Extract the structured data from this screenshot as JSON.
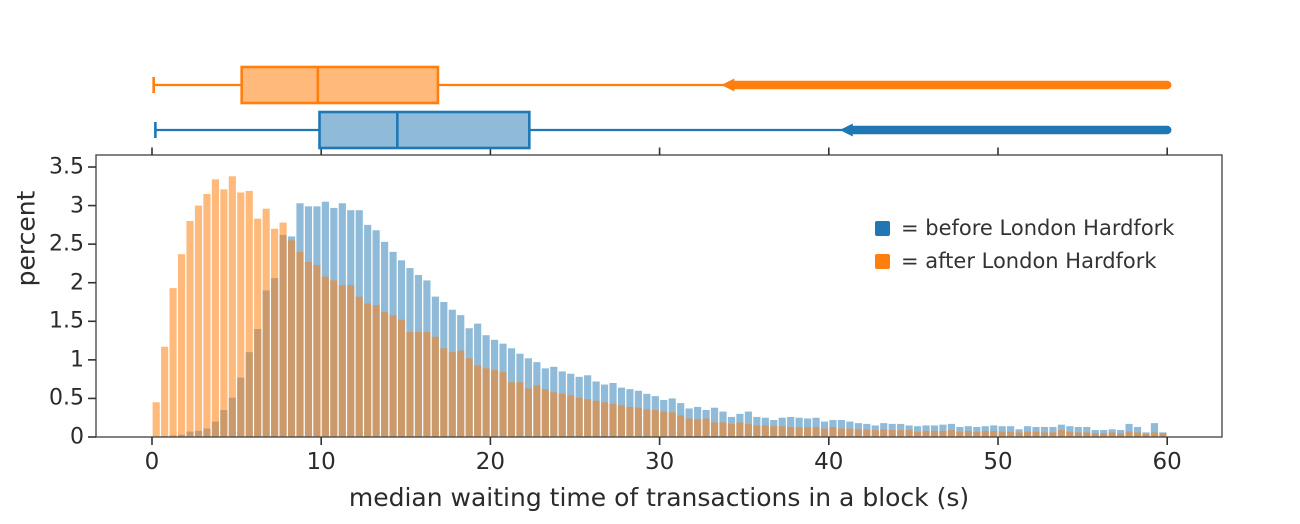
{
  "figure": {
    "x_axis_title": "median waiting time of transactions in a block (s)",
    "y_axis_title": "percent"
  },
  "legend": {
    "items": [
      {
        "label": "= before London Hardfork",
        "color": "#2077b4"
      },
      {
        "label": "= after London Hardfork",
        "color": "#ff7f0e"
      }
    ]
  },
  "chart_data": {
    "type": "bar",
    "subtype": "overlaid histograms with marginal box plots",
    "bin_width_s": 0.5,
    "x_start": 0,
    "x_ticks": [
      0,
      10,
      20,
      30,
      40,
      50,
      60
    ],
    "y_ticks": [
      "0",
      "0.5",
      "1",
      "1.5",
      "2",
      "2.5",
      "3",
      "3.5"
    ],
    "y_tick_values": [
      0,
      0.5,
      1,
      1.5,
      2,
      2.5,
      3,
      3.5
    ],
    "xlim": [
      -3.3,
      63.2
    ],
    "ylim": [
      0,
      3.66
    ],
    "grid": false,
    "legend_position": "inside top-right",
    "series": [
      {
        "name": "before London Hardfork",
        "color": "#1f77b4",
        "fill_alpha": 0.5,
        "values": [
          0.0,
          0.01,
          0.02,
          0.03,
          0.07,
          0.08,
          0.11,
          0.2,
          0.35,
          0.51,
          0.77,
          1.1,
          1.4,
          1.9,
          2.06,
          2.62,
          2.6,
          3.03,
          2.99,
          2.99,
          3.05,
          2.97,
          3.03,
          2.94,
          2.94,
          2.75,
          2.68,
          2.53,
          2.4,
          2.29,
          2.19,
          2.1,
          2.03,
          1.82,
          1.75,
          1.65,
          1.58,
          1.41,
          1.47,
          1.32,
          1.26,
          1.21,
          1.15,
          1.08,
          1.02,
          0.97,
          0.89,
          0.91,
          0.85,
          0.82,
          0.78,
          0.8,
          0.72,
          0.68,
          0.7,
          0.64,
          0.62,
          0.6,
          0.56,
          0.53,
          0.48,
          0.5,
          0.44,
          0.37,
          0.39,
          0.35,
          0.38,
          0.33,
          0.26,
          0.3,
          0.33,
          0.26,
          0.25,
          0.22,
          0.25,
          0.26,
          0.25,
          0.24,
          0.25,
          0.2,
          0.22,
          0.22,
          0.2,
          0.18,
          0.17,
          0.15,
          0.18,
          0.17,
          0.17,
          0.15,
          0.14,
          0.15,
          0.15,
          0.16,
          0.17,
          0.13,
          0.14,
          0.13,
          0.14,
          0.15,
          0.14,
          0.14,
          0.1,
          0.14,
          0.13,
          0.13,
          0.13,
          0.16,
          0.14,
          0.13,
          0.13,
          0.09,
          0.09,
          0.1,
          0.09,
          0.17,
          0.13,
          0.06,
          0.18,
          0.06
        ]
      },
      {
        "name": "after London Hardfork",
        "color": "#ff7f0e",
        "fill_alpha": 0.55,
        "values": [
          0.45,
          1.17,
          1.93,
          2.37,
          2.8,
          3.0,
          3.15,
          3.34,
          3.21,
          3.38,
          3.17,
          3.19,
          2.83,
          2.96,
          2.7,
          2.78,
          2.55,
          2.4,
          2.27,
          2.23,
          2.08,
          2.03,
          1.97,
          1.97,
          1.82,
          1.73,
          1.71,
          1.62,
          1.58,
          1.52,
          1.36,
          1.36,
          1.36,
          1.3,
          1.15,
          1.1,
          1.12,
          1.02,
          0.93,
          0.89,
          0.87,
          0.84,
          0.71,
          0.71,
          0.63,
          0.67,
          0.62,
          0.58,
          0.56,
          0.54,
          0.51,
          0.49,
          0.47,
          0.45,
          0.43,
          0.41,
          0.39,
          0.38,
          0.36,
          0.35,
          0.33,
          0.32,
          0.28,
          0.24,
          0.23,
          0.24,
          0.19,
          0.19,
          0.17,
          0.19,
          0.17,
          0.15,
          0.15,
          0.14,
          0.14,
          0.13,
          0.13,
          0.13,
          0.13,
          0.11,
          0.13,
          0.11,
          0.11,
          0.1,
          0.1,
          0.09,
          0.1,
          0.09,
          0.09,
          0.09,
          0.07,
          0.08,
          0.08,
          0.08,
          0.09,
          0.07,
          0.08,
          0.07,
          0.08,
          0.08,
          0.07,
          0.07,
          0.06,
          0.07,
          0.07,
          0.06,
          0.06,
          0.09,
          0.07,
          0.06,
          0.06,
          0.05,
          0.05,
          0.06,
          0.05,
          0.07,
          0.06,
          0.04,
          0.06,
          0.05
        ]
      }
    ],
    "boxplots": [
      {
        "name": "after London Hardfork",
        "color": "#ff7f0e",
        "fill_alpha": 0.55,
        "min": 0.1,
        "q1": 5.3,
        "median": 9.8,
        "q3": 16.9,
        "upper_whisker": 34.3,
        "outliers_from": 34.3,
        "outliers_to": 60
      },
      {
        "name": "before London Hardfork",
        "color": "#1f77b4",
        "fill_alpha": 0.5,
        "min": 0.2,
        "q1": 9.9,
        "median": 14.5,
        "q3": 22.3,
        "upper_whisker": 41.3,
        "outliers_from": 41.3,
        "outliers_to": 60
      }
    ]
  }
}
